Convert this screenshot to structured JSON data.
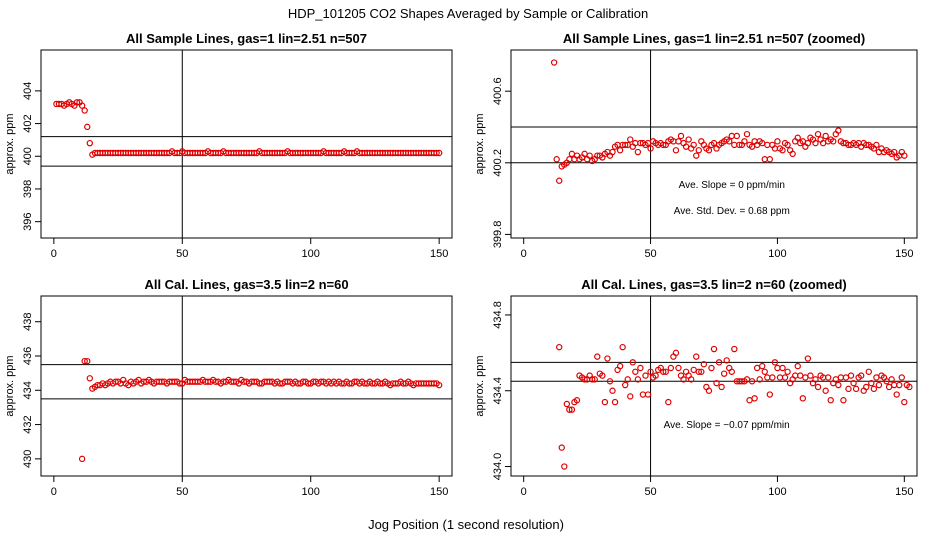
{
  "title": "HDP_101205  CO2 Shapes Averaged by Sample or Calibration",
  "xlabel": "Jog Position (1 second resolution)",
  "colors": {
    "points": "#e00000",
    "lines": "#000000"
  },
  "chart_data": [
    {
      "type": "scatter",
      "title": "All Sample Lines, gas=1 lin=2.51 n=507",
      "ylabel": "approx. ppm",
      "xlim": [
        -5,
        155
      ],
      "ylim": [
        395,
        406.5
      ],
      "xticks": [
        0,
        50,
        100,
        150
      ],
      "yticks": [
        396,
        398,
        400,
        402,
        404
      ],
      "hlines": [
        401.2,
        399.4
      ],
      "vline": 50,
      "annotations": [],
      "x_start": 1,
      "y": [
        403.2,
        403.2,
        403.2,
        403.1,
        403.2,
        403.3,
        403.2,
        403.1,
        403.3,
        403.3,
        403.1,
        402.8,
        401.8,
        400.8,
        400.1,
        400.2,
        400.2,
        400.2,
        400.2,
        400.2,
        400.2,
        400.2,
        400.2,
        400.2,
        400.2,
        400.2,
        400.2,
        400.2,
        400.2,
        400.2,
        400.2,
        400.2,
        400.2,
        400.2,
        400.2,
        400.2,
        400.2,
        400.2,
        400.2,
        400.2,
        400.2,
        400.2,
        400.2,
        400.2,
        400.2,
        400.3,
        400.2,
        400.2,
        400.2,
        400.3,
        400.2,
        400.2,
        400.2,
        400.2,
        400.2,
        400.2,
        400.2,
        400.2,
        400.2,
        400.3,
        400.2,
        400.2,
        400.2,
        400.2,
        400.2,
        400.3,
        400.2,
        400.2,
        400.2,
        400.2,
        400.2,
        400.2,
        400.2,
        400.2,
        400.2,
        400.2,
        400.2,
        400.2,
        400.2,
        400.3,
        400.2,
        400.2,
        400.2,
        400.2,
        400.2,
        400.2,
        400.2,
        400.2,
        400.2,
        400.2,
        400.3,
        400.2,
        400.2,
        400.2,
        400.2,
        400.2,
        400.2,
        400.2,
        400.2,
        400.2,
        400.2,
        400.2,
        400.2,
        400.2,
        400.3,
        400.2,
        400.2,
        400.2,
        400.2,
        400.2,
        400.2,
        400.2,
        400.3,
        400.2,
        400.2,
        400.2,
        400.2,
        400.3,
        400.2,
        400.2,
        400.2,
        400.2,
        400.2,
        400.2,
        400.2,
        400.2,
        400.2,
        400.2,
        400.2,
        400.2,
        400.2,
        400.2,
        400.2,
        400.2,
        400.2,
        400.2,
        400.2,
        400.2,
        400.2,
        400.2,
        400.2,
        400.2,
        400.2,
        400.2,
        400.2,
        400.2,
        400.2,
        400.2,
        400.2,
        400.2
      ]
    },
    {
      "type": "scatter",
      "title": "All Sample Lines, gas=1 lin=2.51 n=507 (zoomed)",
      "ylabel": "approx. ppm",
      "xlim": [
        -5,
        155
      ],
      "ylim": [
        399.78,
        400.83
      ],
      "xticks": [
        0,
        50,
        100,
        150
      ],
      "yticks": [
        399.8,
        400.2,
        400.6
      ],
      "hlines": [
        400.4,
        400.2
      ],
      "vline": 50,
      "annotations": [
        "Ave. Slope =  0  ppm/min",
        "Ave. Std. Dev. =  0.68  ppm"
      ],
      "x_start": 12,
      "y": [
        400.76,
        400.22,
        400.1,
        400.18,
        400.19,
        400.2,
        400.22,
        400.25,
        400.22,
        400.24,
        400.22,
        400.23,
        400.25,
        400.22,
        400.24,
        400.21,
        400.22,
        400.24,
        400.24,
        400.23,
        400.25,
        400.26,
        400.24,
        400.26,
        400.29,
        400.3,
        400.27,
        400.3,
        400.3,
        400.3,
        400.33,
        400.29,
        400.31,
        400.26,
        400.31,
        400.31,
        400.3,
        400.31,
        400.28,
        400.32,
        400.31,
        400.3,
        400.31,
        400.3,
        400.3,
        400.32,
        400.33,
        400.32,
        400.27,
        400.32,
        400.35,
        400.31,
        400.29,
        400.33,
        400.28,
        400.3,
        400.24,
        400.27,
        400.32,
        400.3,
        400.28,
        400.27,
        400.3,
        400.31,
        400.28,
        400.3,
        400.31,
        400.32,
        400.33,
        400.32,
        400.35,
        400.3,
        400.35,
        400.3,
        400.3,
        400.32,
        400.36,
        400.3,
        400.29,
        400.32,
        400.3,
        400.32,
        400.31,
        400.22,
        400.3,
        400.22,
        400.3,
        400.28,
        400.32,
        400.28,
        400.27,
        400.31,
        400.3,
        400.27,
        400.25,
        400.32,
        400.34,
        400.31,
        400.32,
        400.29,
        400.31,
        400.34,
        400.33,
        400.31,
        400.36,
        400.33,
        400.31,
        400.35,
        400.32,
        400.33,
        400.32,
        400.36,
        400.38,
        400.32,
        400.31,
        400.31,
        400.3,
        400.3,
        400.31,
        400.3,
        400.31,
        400.29,
        400.31,
        400.3,
        400.3,
        400.29,
        400.28,
        400.3,
        400.26,
        400.28,
        400.26,
        400.27,
        400.26,
        400.25,
        400.26,
        400.23,
        400.24,
        400.26,
        400.24
      ]
    },
    {
      "type": "scatter",
      "title": "All Cal. Lines, gas=3.5 lin=2 n=60",
      "ylabel": "approx. ppm",
      "xlim": [
        -5,
        155
      ],
      "ylim": [
        429,
        439.5
      ],
      "xticks": [
        0,
        50,
        100,
        150
      ],
      "yticks": [
        430,
        432,
        434,
        436,
        438
      ],
      "hlines": [
        435.5,
        433.5
      ],
      "vline": 50,
      "annotations": [],
      "x_start": 11,
      "y": [
        430.0,
        435.7,
        435.7,
        434.7,
        434.1,
        434.2,
        434.3,
        434.3,
        434.4,
        434.3,
        434.4,
        434.5,
        434.4,
        434.5,
        434.5,
        434.4,
        434.6,
        434.4,
        434.3,
        434.5,
        434.4,
        434.5,
        434.6,
        434.4,
        434.5,
        434.5,
        434.6,
        434.5,
        434.4,
        434.5,
        434.5,
        434.5,
        434.5,
        434.4,
        434.5,
        434.5,
        434.5,
        434.5,
        434.4,
        434.4,
        434.6,
        434.5,
        434.5,
        434.5,
        434.5,
        434.5,
        434.5,
        434.6,
        434.5,
        434.5,
        434.5,
        434.6,
        434.5,
        434.5,
        434.4,
        434.5,
        434.5,
        434.6,
        434.5,
        434.5,
        434.5,
        434.4,
        434.6,
        434.5,
        434.5,
        434.4,
        434.5,
        434.5,
        434.5,
        434.4,
        434.4,
        434.5,
        434.5,
        434.5,
        434.5,
        434.4,
        434.5,
        434.4,
        434.4,
        434.5,
        434.5,
        434.5,
        434.4,
        434.5,
        434.4,
        434.4,
        434.5,
        434.5,
        434.4,
        434.4,
        434.5,
        434.5,
        434.4,
        434.5,
        434.5,
        434.4,
        434.5,
        434.4,
        434.5,
        434.4,
        434.5,
        434.4,
        434.4,
        434.5,
        434.4,
        434.4,
        434.5,
        434.5,
        434.4,
        434.5,
        434.4,
        434.4,
        434.5,
        434.4,
        434.4,
        434.5,
        434.4,
        434.4,
        434.5,
        434.4,
        434.3,
        434.4,
        434.4,
        434.4,
        434.5,
        434.4,
        434.4,
        434.5,
        434.4,
        434.3,
        434.4,
        434.4,
        434.4,
        434.4,
        434.4,
        434.4,
        434.4,
        434.4,
        434.4,
        434.3
      ]
    },
    {
      "type": "scatter",
      "title": "All Cal. Lines, gas=3.5 lin=2 n=60 (zoomed)",
      "ylabel": "approx. ppm",
      "xlim": [
        -5,
        155
      ],
      "ylim": [
        433.95,
        434.9
      ],
      "xticks": [
        0,
        50,
        100,
        150
      ],
      "yticks": [
        434.0,
        434.4,
        434.8
      ],
      "hlines": [
        434.55,
        434.45
      ],
      "vline": 50,
      "annotations": [
        "Ave. Slope =  −0.07  ppm/min"
      ],
      "x_start": 14,
      "y": [
        434.63,
        434.1,
        434.0,
        434.33,
        434.3,
        434.3,
        434.34,
        434.35,
        434.48,
        434.47,
        434.46,
        434.46,
        434.48,
        434.46,
        434.46,
        434.58,
        434.49,
        434.48,
        434.34,
        434.57,
        434.45,
        434.4,
        434.34,
        434.51,
        434.53,
        434.63,
        434.43,
        434.46,
        434.37,
        434.55,
        434.5,
        434.46,
        434.52,
        434.38,
        434.48,
        434.38,
        434.5,
        434.47,
        434.48,
        434.51,
        434.52,
        434.5,
        434.5,
        434.34,
        434.52,
        434.58,
        434.6,
        434.52,
        434.48,
        434.46,
        434.5,
        434.48,
        434.46,
        434.51,
        434.58,
        434.5,
        434.5,
        434.54,
        434.42,
        434.4,
        434.52,
        434.62,
        434.44,
        434.55,
        434.42,
        434.49,
        434.56,
        434.52,
        434.5,
        434.62,
        434.45,
        434.45,
        434.45,
        434.45,
        434.46,
        434.35,
        434.45,
        434.36,
        434.52,
        434.46,
        434.53,
        434.5,
        434.47,
        434.38,
        434.47,
        434.55,
        434.52,
        434.47,
        434.52,
        434.47,
        434.5,
        434.44,
        434.46,
        434.48,
        434.53,
        434.48,
        434.36,
        434.47,
        434.57,
        434.48,
        434.44,
        434.46,
        434.42,
        434.48,
        434.47,
        434.4,
        434.47,
        434.35,
        434.44,
        434.46,
        434.43,
        434.47,
        434.35,
        434.47,
        434.41,
        434.48,
        434.44,
        434.41,
        434.47,
        434.48,
        434.4,
        434.42,
        434.5,
        434.44,
        434.41,
        434.47,
        434.43,
        434.48,
        434.47,
        434.45,
        434.42,
        434.46,
        434.43,
        434.38,
        434.43,
        434.47,
        434.34,
        434.43,
        434.42
      ]
    }
  ]
}
